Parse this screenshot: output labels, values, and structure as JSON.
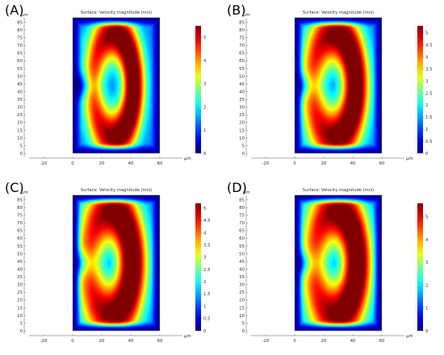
{
  "chart_data": [
    {
      "type": "heatmap",
      "panel_label": "(A)",
      "title": "Surface: Velocity magnitude (m/s)",
      "x_unit": "μm",
      "y_unit": "μm",
      "x_ticks": [
        "-20",
        "0",
        "20",
        "40",
        "60"
      ],
      "y_ticks": [
        "0",
        "5",
        "10",
        "15",
        "20",
        "25",
        "30",
        "35",
        "40",
        "45",
        "50",
        "55",
        "60",
        "65",
        "70",
        "75",
        "80",
        "85"
      ],
      "xlim": [
        -30,
        80
      ],
      "ylim": [
        -2,
        90
      ],
      "domain_x": [
        0,
        60
      ],
      "domain_y": [
        0,
        88
      ],
      "colorbar_ticks": [
        "0",
        "1",
        "2",
        "3",
        "4",
        "5"
      ],
      "colorbar_max": 5.5,
      "field": {
        "peak": 5.5,
        "arc_cx": 28,
        "arc_cy": 44,
        "arc_rx": 14,
        "arc_ry": 33,
        "arc_width": 7.5,
        "left_fill": 0.55
      }
    },
    {
      "type": "heatmap",
      "panel_label": "(B)",
      "title": "Surface: Velocity magnitude (m/s)",
      "x_unit": "μm",
      "y_unit": "μm",
      "x_ticks": [
        "-20",
        "0",
        "20",
        "40",
        "60"
      ],
      "y_ticks": [
        "0",
        "5",
        "10",
        "15",
        "20",
        "25",
        "30",
        "35",
        "40",
        "45",
        "50",
        "55",
        "60",
        "65",
        "70",
        "75",
        "80",
        "85"
      ],
      "xlim": [
        -30,
        80
      ],
      "ylim": [
        -2,
        90
      ],
      "domain_x": [
        0,
        60
      ],
      "domain_y": [
        0,
        88
      ],
      "colorbar_ticks": [
        "0",
        "0.5",
        "1",
        "1.5",
        "2",
        "2.5",
        "3",
        "3.5",
        "4",
        "4.5",
        "5"
      ],
      "colorbar_max": 5.3,
      "field": {
        "peak": 5.3,
        "arc_cx": 27,
        "arc_cy": 44,
        "arc_rx": 15,
        "arc_ry": 33,
        "arc_width": 9,
        "left_fill": 0.75
      }
    },
    {
      "type": "heatmap",
      "panel_label": "(C)",
      "title": "Surface: Velocity magnitude (m/s)",
      "x_unit": "μm",
      "y_unit": "μm",
      "x_ticks": [
        "-20",
        "0",
        "20",
        "40",
        "60"
      ],
      "y_ticks": [
        "0",
        "5",
        "10",
        "15",
        "20",
        "25",
        "30",
        "35",
        "40",
        "45",
        "50",
        "55",
        "60",
        "65",
        "70",
        "75",
        "80",
        "85"
      ],
      "xlim": [
        -30,
        80
      ],
      "ylim": [
        -2,
        90
      ],
      "domain_x": [
        0,
        60
      ],
      "domain_y": [
        0,
        88
      ],
      "colorbar_ticks": [
        "0",
        "0.5",
        "1",
        "1.5",
        "2",
        "2.5",
        "3",
        "3.5",
        "4",
        "4.5",
        "5"
      ],
      "colorbar_max": 5.2,
      "field": {
        "peak": 5.2,
        "arc_cx": 26,
        "arc_cy": 44,
        "arc_rx": 15,
        "arc_ry": 33,
        "arc_width": 10,
        "left_fill": 0.85
      }
    },
    {
      "type": "heatmap",
      "panel_label": "(D)",
      "title": "Surface: Velocity magnitude (m/s)",
      "x_unit": "μm",
      "y_unit": "μm",
      "x_ticks": [
        "-20",
        "0",
        "20",
        "40",
        "60"
      ],
      "y_ticks": [
        "0",
        "5",
        "10",
        "15",
        "20",
        "25",
        "30",
        "35",
        "40",
        "45",
        "50",
        "55",
        "60",
        "65",
        "70",
        "75",
        "80",
        "85"
      ],
      "xlim": [
        -30,
        80
      ],
      "ylim": [
        -2,
        90
      ],
      "domain_x": [
        0,
        60
      ],
      "domain_y": [
        0,
        88
      ],
      "colorbar_ticks": [
        "0",
        "1",
        "2",
        "3",
        "4",
        "5"
      ],
      "colorbar_max": 5.6,
      "field": {
        "peak": 5.6,
        "arc_cx": 28,
        "arc_cy": 44,
        "arc_rx": 15,
        "arc_ry": 33,
        "arc_width": 10,
        "left_fill": 0.8
      }
    }
  ]
}
